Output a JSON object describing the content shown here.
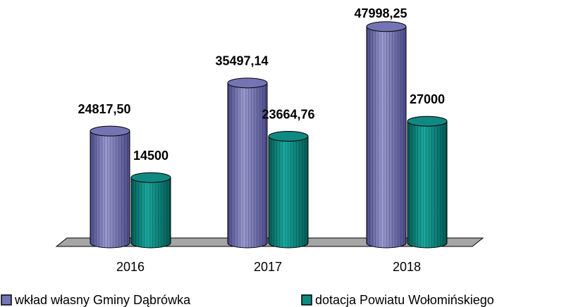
{
  "chart_data": {
    "type": "bar",
    "categories": [
      "2016",
      "2017",
      "2018"
    ],
    "series": [
      {
        "name": "wkład własny Gminy Dąbrówka",
        "color": "#7474b4",
        "values": [
          24817.5,
          35497.14,
          47998.25
        ],
        "value_labels": [
          "24817,50",
          "35497,14",
          "47998,25"
        ]
      },
      {
        "name": "dotacja Powiatu Wołomińskiego",
        "color": "#0e8a82",
        "values": [
          14500,
          23664.76,
          27000
        ],
        "value_labels": [
          "14500",
          "23664,76",
          "27000"
        ]
      }
    ],
    "ylim": [
      0,
      50000
    ]
  }
}
